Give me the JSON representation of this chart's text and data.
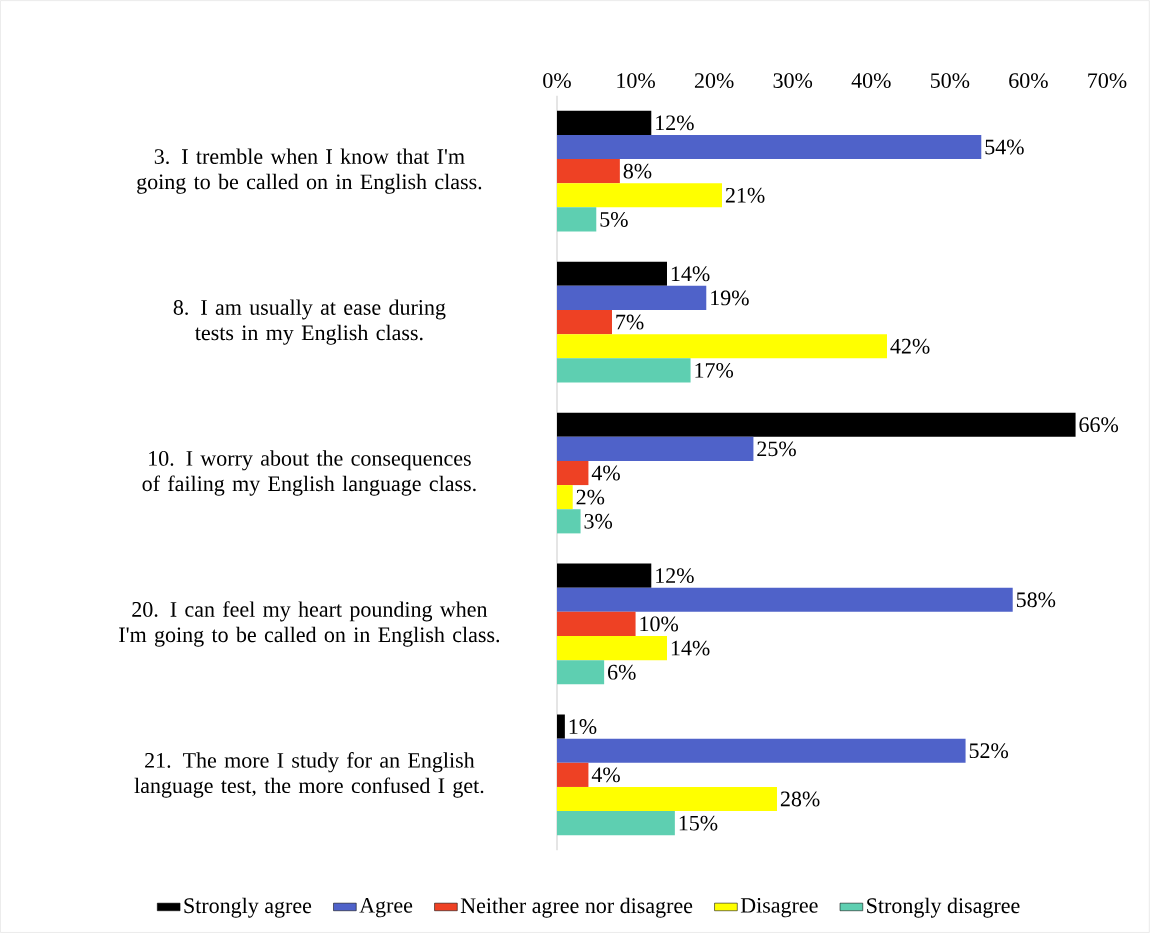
{
  "chart_data": {
    "type": "bar",
    "orientation": "horizontal",
    "categories": [
      "3. I tremble when I know that I'm going to be called on in English class.",
      "8. I am usually at ease during tests in my English class.",
      "10. I worry about the consequences of failing my English language class.",
      "20. I can feel my heart pounding when I'm going to be called on in English class.",
      "21. The more I study for an English language test, the more confused I get."
    ],
    "series": [
      {
        "name": "Strongly agree",
        "color": "#000000",
        "values": [
          12,
          14,
          66,
          12,
          1
        ],
        "value_labels": [
          "12%",
          "14%",
          "66%",
          "12%",
          "1%"
        ]
      },
      {
        "name": "Agree",
        "color": "#4f62c9",
        "values": [
          54,
          19,
          25,
          58,
          52
        ],
        "value_labels": [
          "54%",
          "19%",
          "25%",
          "58%",
          "52%"
        ]
      },
      {
        "name": "Neither agree nor disagree",
        "color": "#ee4124",
        "values": [
          8,
          7,
          4,
          10,
          4
        ],
        "value_labels": [
          "8%",
          "7%",
          "4%",
          "10%",
          "4%"
        ]
      },
      {
        "name": "Disagree",
        "color": "#ffff00",
        "values": [
          21,
          42,
          2,
          14,
          28
        ],
        "value_labels": [
          "21%",
          "42%",
          "2%",
          "14%",
          "28%"
        ]
      },
      {
        "name": "Strongly disagree",
        "color": "#5ecfb1",
        "values": [
          5,
          17,
          3,
          6,
          15
        ],
        "value_labels": [
          "5%",
          "17%",
          "3%",
          "6%",
          "15%"
        ]
      }
    ],
    "xlim": [
      0,
      70
    ],
    "xticks": [
      {
        "value": 0,
        "label": "0%"
      },
      {
        "value": 10,
        "label": "10%"
      },
      {
        "value": 20,
        "label": "20%"
      },
      {
        "value": 30,
        "label": "30%"
      },
      {
        "value": 40,
        "label": "40%"
      },
      {
        "value": 50,
        "label": "50%"
      },
      {
        "value": 60,
        "label": "60%"
      },
      {
        "value": 70,
        "label": "70%"
      }
    ],
    "grid": false,
    "legend": "bottom"
  }
}
